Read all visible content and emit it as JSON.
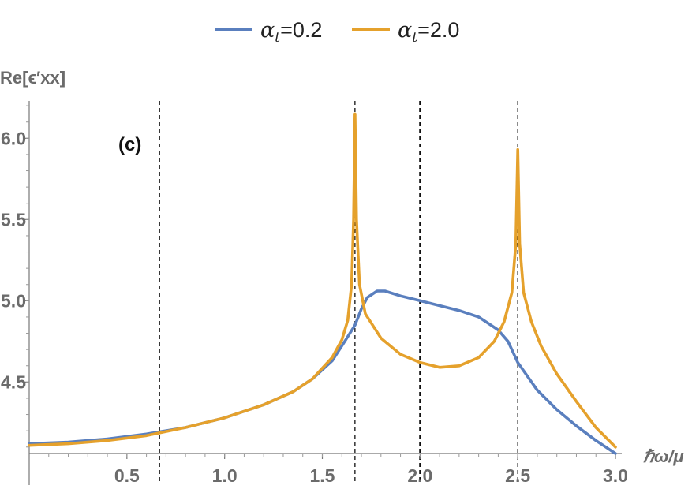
{
  "chart_data": {
    "type": "line",
    "panel_label": "(c)",
    "xlabel": "ℏω/μ",
    "ylabel": "Re[ϵ′xx]",
    "xlim": [
      0.0,
      3.0
    ],
    "ylim": [
      4.06,
      6.22
    ],
    "x_ticks": [
      "0.5",
      "1.0",
      "1.5",
      "2.0",
      "2.5",
      "3.0"
    ],
    "x_tick_values": [
      0.5,
      1.0,
      1.5,
      2.0,
      2.5,
      3.0
    ],
    "y_ticks": [
      "4.5",
      "5.0",
      "5.5",
      "6.0"
    ],
    "y_tick_values": [
      4.5,
      5.0,
      5.5,
      6.0
    ],
    "legend_position": "top-center",
    "vertical_dashed_lines": [
      0.667,
      1.667,
      2.0,
      2.5
    ],
    "series": [
      {
        "name_symbol": "α",
        "name_sub": "t",
        "name_value": "=0.2",
        "color": "#5a7fbe",
        "points": [
          [
            0.0,
            4.12
          ],
          [
            0.2,
            4.13
          ],
          [
            0.4,
            4.15
          ],
          [
            0.6,
            4.18
          ],
          [
            0.8,
            4.22
          ],
          [
            1.0,
            4.28
          ],
          [
            1.2,
            4.36
          ],
          [
            1.35,
            4.44
          ],
          [
            1.45,
            4.52
          ],
          [
            1.55,
            4.63
          ],
          [
            1.62,
            4.76
          ],
          [
            1.667,
            4.85
          ],
          [
            1.7,
            4.95
          ],
          [
            1.73,
            5.02
          ],
          [
            1.78,
            5.06
          ],
          [
            1.82,
            5.06
          ],
          [
            1.9,
            5.03
          ],
          [
            2.0,
            5.0
          ],
          [
            2.1,
            4.97
          ],
          [
            2.2,
            4.94
          ],
          [
            2.3,
            4.9
          ],
          [
            2.4,
            4.82
          ],
          [
            2.45,
            4.75
          ],
          [
            2.5,
            4.62
          ],
          [
            2.6,
            4.45
          ],
          [
            2.7,
            4.33
          ],
          [
            2.8,
            4.23
          ],
          [
            2.9,
            4.14
          ],
          [
            3.0,
            4.06
          ]
        ]
      },
      {
        "name_symbol": "α",
        "name_sub": "t",
        "name_value": "=2.0",
        "color": "#e5a12c",
        "points": [
          [
            0.0,
            4.11
          ],
          [
            0.2,
            4.12
          ],
          [
            0.4,
            4.14
          ],
          [
            0.6,
            4.17
          ],
          [
            0.8,
            4.22
          ],
          [
            1.0,
            4.28
          ],
          [
            1.2,
            4.36
          ],
          [
            1.35,
            4.44
          ],
          [
            1.45,
            4.52
          ],
          [
            1.55,
            4.65
          ],
          [
            1.6,
            4.76
          ],
          [
            1.63,
            4.88
          ],
          [
            1.65,
            5.1
          ],
          [
            1.66,
            5.5
          ],
          [
            1.667,
            6.15
          ],
          [
            1.675,
            5.5
          ],
          [
            1.69,
            5.1
          ],
          [
            1.72,
            4.92
          ],
          [
            1.8,
            4.77
          ],
          [
            1.9,
            4.67
          ],
          [
            2.0,
            4.62
          ],
          [
            2.1,
            4.59
          ],
          [
            2.2,
            4.6
          ],
          [
            2.3,
            4.65
          ],
          [
            2.38,
            4.75
          ],
          [
            2.43,
            4.87
          ],
          [
            2.47,
            5.05
          ],
          [
            2.49,
            5.35
          ],
          [
            2.5,
            5.93
          ],
          [
            2.51,
            5.35
          ],
          [
            2.53,
            5.05
          ],
          [
            2.57,
            4.87
          ],
          [
            2.62,
            4.72
          ],
          [
            2.7,
            4.55
          ],
          [
            2.8,
            4.38
          ],
          [
            2.9,
            4.22
          ],
          [
            3.0,
            4.1
          ]
        ]
      }
    ]
  }
}
